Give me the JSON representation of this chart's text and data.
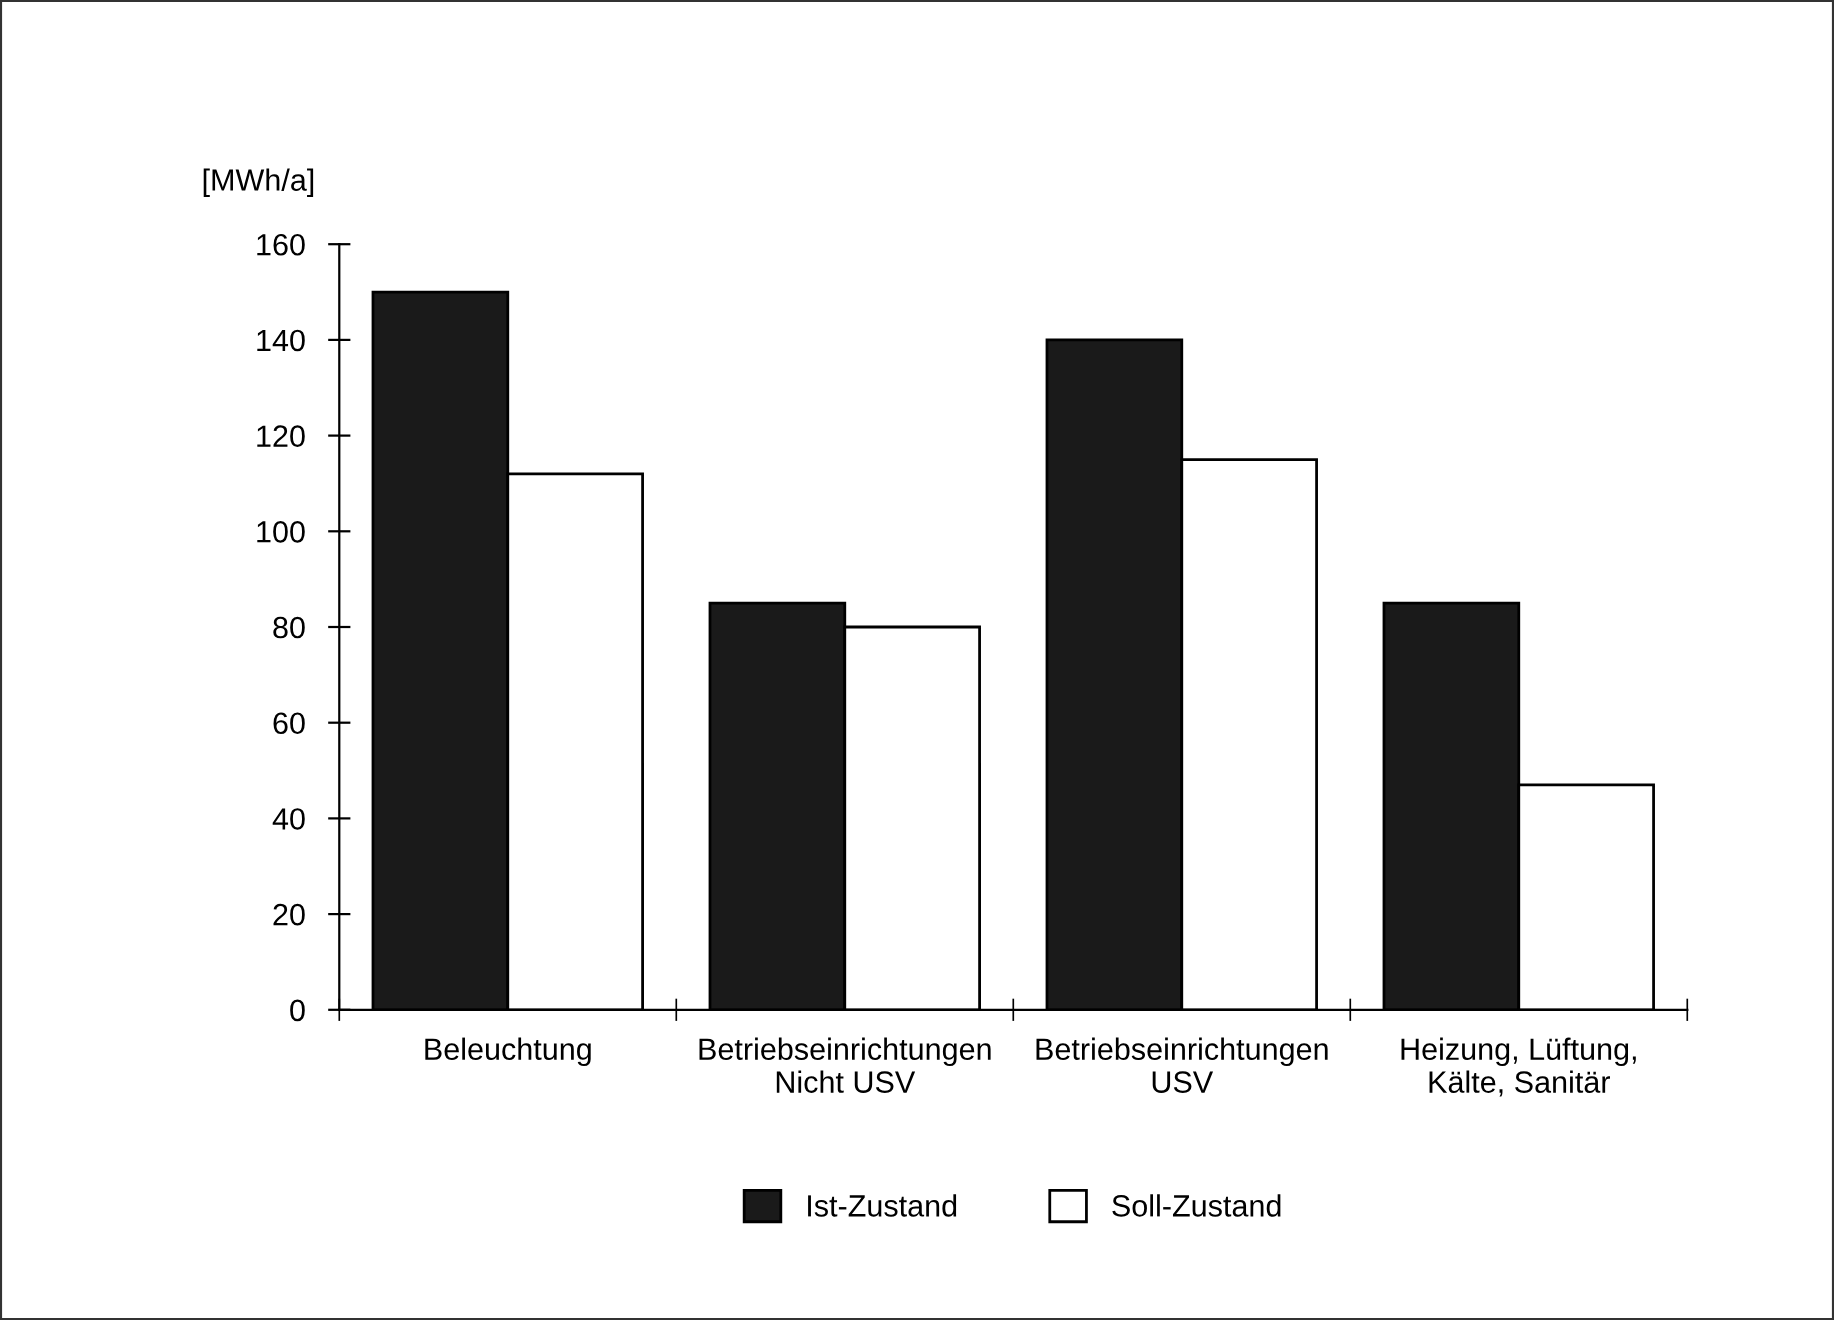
{
  "chart_data": {
    "type": "bar",
    "ylabel": "[MWh/a]",
    "categories": [
      "Beleuchtung",
      "Betriebseinrichtungen\nNicht USV",
      "Betriebseinrichtungen\nUSV",
      "Heizung, Lüftung,\nKälte, Sanitär"
    ],
    "series": [
      {
        "name": "Ist-Zustand",
        "color": "#1a1a1a",
        "values": [
          150,
          85,
          140,
          85
        ]
      },
      {
        "name": "Soll-Zustand",
        "color": "#ffffff",
        "values": [
          112,
          80,
          115,
          47
        ]
      }
    ],
    "ylim": [
      0,
      160
    ],
    "yticks": [
      0,
      20,
      40,
      60,
      80,
      100,
      120,
      140,
      160
    ],
    "grid": false,
    "legend": "bottom"
  }
}
